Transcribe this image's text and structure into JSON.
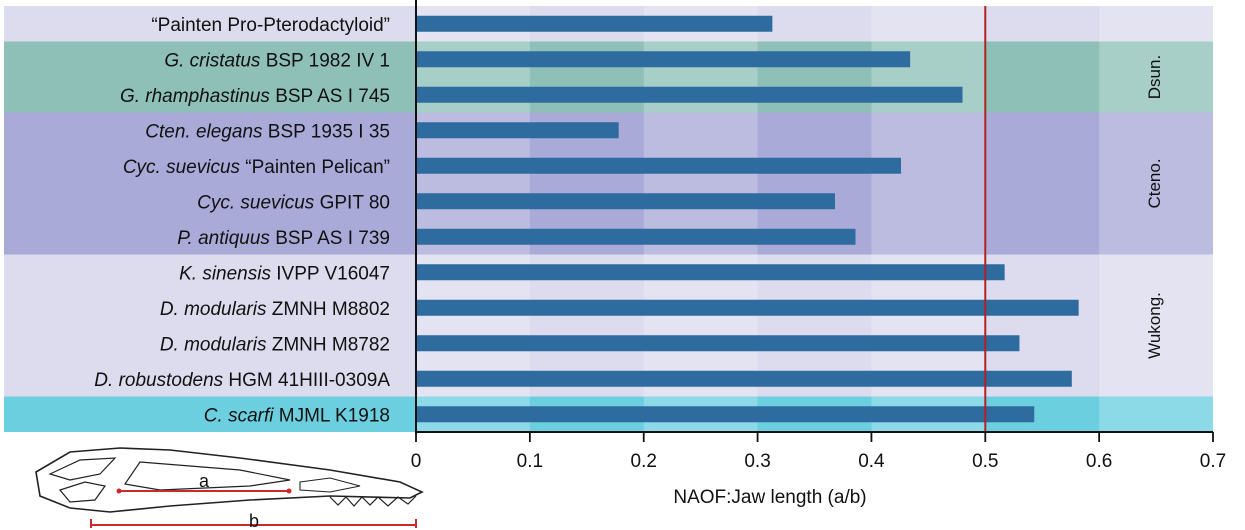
{
  "chart_data": {
    "type": "bar",
    "orientation": "horizontal",
    "title": "",
    "xlabel": "NAOF:Jaw length (a/b)",
    "ylabel": "",
    "xlim": [
      0,
      0.7
    ],
    "xticks": [
      "0",
      "0.1",
      "0.2",
      "0.3",
      "0.4",
      "0.5",
      "0.6",
      "0.7"
    ],
    "reference_line": {
      "x": 0.5,
      "color": "#b22222"
    },
    "bar_color": "#2e6b9e",
    "categories": [
      {
        "italic": "",
        "rest": "“Painten Pro-Pterodactyloid”"
      },
      {
        "italic": "G. cristatus",
        "rest": " BSP 1982 IV 1"
      },
      {
        "italic": "G. rhamphastinus",
        "rest": " BSP AS I 745"
      },
      {
        "italic": "Cten. elegans",
        "rest": " BSP 1935 I 35"
      },
      {
        "italic": "Cyc. suevicus",
        "rest": " “Painten Pelican”"
      },
      {
        "italic": "Cyc. suevicus",
        "rest": " GPIT 80"
      },
      {
        "italic": "P. antiquus",
        "rest": " BSP AS I 739"
      },
      {
        "italic": "K. sinensis",
        "rest": " IVPP V16047"
      },
      {
        "italic": "D. modularis",
        "rest": " ZMNH M8802"
      },
      {
        "italic": "D. modularis",
        "rest": " ZMNH M8782"
      },
      {
        "italic": "D. robustodens",
        "rest": " HGM 41HIII-0309A"
      },
      {
        "italic": "C. scarfi",
        "rest": " MJML K1918"
      }
    ],
    "values": [
      0.313,
      0.434,
      0.48,
      0.178,
      0.426,
      0.368,
      0.386,
      0.517,
      0.582,
      0.53,
      0.576,
      0.543
    ],
    "groups": [
      {
        "label": "",
        "rows": [
          0,
          0
        ],
        "color": "#dcdcee"
      },
      {
        "label": "Dsun.",
        "rows": [
          1,
          2
        ],
        "color": "#8fc0b8"
      },
      {
        "label": "Cteno.",
        "rows": [
          3,
          6
        ],
        "color": "#a9aad8"
      },
      {
        "label": "Wukong.",
        "rows": [
          7,
          10
        ],
        "color": "#dcdcee"
      },
      {
        "label": "",
        "rows": [
          11,
          11
        ],
        "color": "#6ccfe0"
      }
    ],
    "alternate_column_shading": true,
    "inset": {
      "label_a": "a",
      "label_b": "b"
    }
  }
}
